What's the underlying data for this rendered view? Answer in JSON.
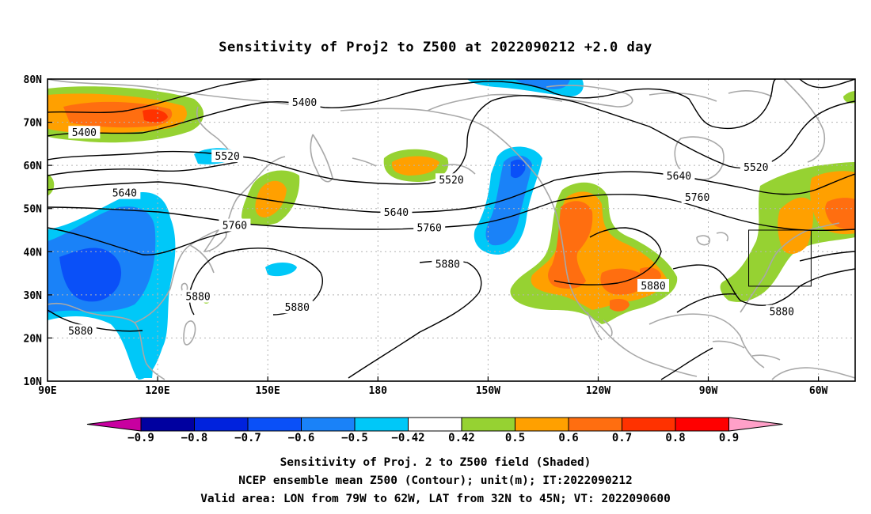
{
  "title": "Sensitivity of Proj2 to Z500 at 2022090212 +2.0 day",
  "map": {
    "lat_labels": [
      "80N",
      "70N",
      "60N",
      "50N",
      "40N",
      "30N",
      "20N",
      "10N"
    ],
    "lon_labels": [
      "90E",
      "120E",
      "150E",
      "180",
      "150W",
      "120W",
      "90W",
      "60W"
    ],
    "extent": {
      "lon_min": 90,
      "lon_max": 310,
      "lat_min": 10,
      "lat_max": 80
    },
    "valid_box": {
      "lon_w": -79,
      "lon_e": -62,
      "lat_s": 32,
      "lat_n": 45
    },
    "contour_labels": [
      {
        "text": "5400",
        "lon": 160,
        "lat": 74.5
      },
      {
        "text": "5400",
        "lon": 100,
        "lat": 67.5
      },
      {
        "text": "5520",
        "lon": 139,
        "lat": 62
      },
      {
        "text": "5520",
        "lon": 200,
        "lat": 56.5
      },
      {
        "text": "5520",
        "lon": 283,
        "lat": 59.5
      },
      {
        "text": "5640",
        "lon": 111,
        "lat": 53.5
      },
      {
        "text": "5640",
        "lon": 185,
        "lat": 49
      },
      {
        "text": "5640",
        "lon": 262,
        "lat": 57.5
      },
      {
        "text": "5760",
        "lon": 141,
        "lat": 46
      },
      {
        "text": "5760",
        "lon": 194,
        "lat": 45.5
      },
      {
        "text": "5760",
        "lon": 267,
        "lat": 52.5
      },
      {
        "text": "5880",
        "lon": 199,
        "lat": 37
      },
      {
        "text": "5880",
        "lon": 255,
        "lat": 32
      },
      {
        "text": "5880",
        "lon": 131,
        "lat": 29.5
      },
      {
        "text": "5880",
        "lon": 158,
        "lat": 27
      },
      {
        "text": "5880",
        "lon": 99,
        "lat": 21.5
      },
      {
        "text": "5880",
        "lon": 290,
        "lat": 26
      }
    ]
  },
  "colorbar": {
    "labels": [
      "-0.9",
      "-0.8",
      "-0.7",
      "-0.6",
      "-0.5",
      "-0.42",
      "0.42",
      "0.5",
      "0.6",
      "0.7",
      "0.8",
      "0.9"
    ],
    "colors": [
      "#0000a0",
      "#0022dd",
      "#0a50f8",
      "#1a82f8",
      "#00c8f8",
      "#ffffff",
      "#96d232",
      "#ffa000",
      "#ff6e10",
      "#ff3200",
      "#ff0000"
    ],
    "end_low": "#c800a0",
    "end_high": "#ffa0c8"
  },
  "caption": {
    "line1": "Sensitivity of Proj. 2 to Z500 field (Shaded)",
    "line2": "NCEP ensemble mean Z500 (Contour); unit(m); IT:2022090212",
    "line3": "Valid area: LON from 79W to 62W, LAT from 32N to 45N; VT: 2022090600"
  }
}
